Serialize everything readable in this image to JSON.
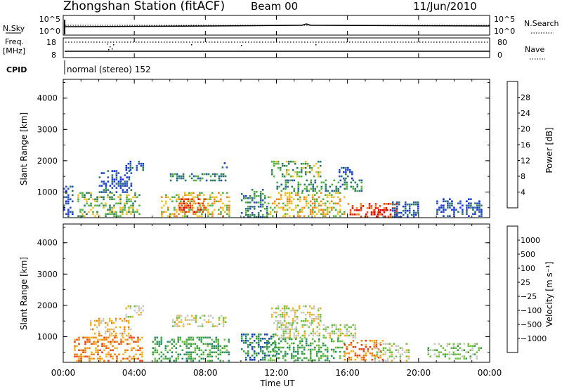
{
  "header": {
    "title": "Zhongshan Station (fitACF)",
    "beam": "Beam 00",
    "date": "11/Jun/2010"
  },
  "status_panels": {
    "nsky_label": "N.Sky",
    "nsky_ticks": [
      "10^5",
      "10^0"
    ],
    "nsearch_label": "N.Search",
    "nsearch_ticks": [
      "10^5",
      "10^0"
    ],
    "freq_label": "Freq.",
    "freq_unit": "[MHz]",
    "freq_ticks": [
      "18",
      "8"
    ],
    "nave_label": "Nave",
    "nave_ticks": [
      "80",
      "0"
    ],
    "cpid_label": "CPID",
    "cpid_text": "normal (stereo) 152"
  },
  "time_axis": {
    "label": "Time UT",
    "ticks": [
      "00:00",
      "04:00",
      "08:00",
      "12:00",
      "16:00",
      "20:00",
      "00:00"
    ]
  },
  "colors": {
    "power_scale": [
      "#1030e8",
      "#2850b8",
      "#2e7a60",
      "#50b040",
      "#f0c020",
      "#f08010",
      "#e84010",
      "#e00000"
    ],
    "velocity_scale": [
      "#1a3fb0",
      "#2a8a70",
      "#3aa040",
      "#70c040",
      "#c8c8c0",
      "#f0b020",
      "#f08000",
      "#e84010",
      "#e00000"
    ]
  },
  "chart_data": [
    {
      "type": "heatmap",
      "title": "",
      "xlabel": "Time UT",
      "ylabel": "Slant Range [km]",
      "xlim": [
        0,
        24
      ],
      "ylim": [
        180,
        4600
      ],
      "yticks": [
        "4000",
        "3000",
        "2000",
        "1000"
      ],
      "colorbar_label": "Power [dB]",
      "colorbar_ticks": [
        "28",
        "24",
        "20",
        "16",
        "12",
        "8",
        "4"
      ],
      "scatter_regions": [
        {
          "t0": 0.0,
          "t1": 0.5,
          "r0": 200,
          "r1": 1200,
          "level": 1
        },
        {
          "t0": 0.8,
          "t1": 4.3,
          "r0": 200,
          "r1": 1000,
          "level": 3
        },
        {
          "t0": 2.0,
          "t1": 3.8,
          "r0": 1000,
          "r1": 1700,
          "level": 1
        },
        {
          "t0": 3.5,
          "t1": 4.5,
          "r0": 1700,
          "r1": 2000,
          "level": 1
        },
        {
          "t0": 5.5,
          "t1": 9.3,
          "r0": 250,
          "r1": 1000,
          "level": 4
        },
        {
          "t0": 6.5,
          "t1": 8.0,
          "r0": 350,
          "r1": 800,
          "level": 6
        },
        {
          "t0": 6.0,
          "t1": 9.2,
          "r0": 1350,
          "r1": 1600,
          "level": 2
        },
        {
          "t0": 8.8,
          "t1": 9.2,
          "r0": 1700,
          "r1": 1950,
          "level": 1
        },
        {
          "t0": 10.0,
          "t1": 11.5,
          "r0": 200,
          "r1": 1100,
          "level": 2
        },
        {
          "t0": 11.7,
          "t1": 14.5,
          "r0": 1500,
          "r1": 2000,
          "level": 3
        },
        {
          "t0": 12.0,
          "t1": 16.8,
          "r0": 1050,
          "r1": 1400,
          "level": 2
        },
        {
          "t0": 11.5,
          "t1": 15.8,
          "r0": 200,
          "r1": 1000,
          "level": 4
        },
        {
          "t0": 15.5,
          "t1": 16.3,
          "r0": 1400,
          "r1": 1800,
          "level": 1
        },
        {
          "t0": 16.0,
          "t1": 18.8,
          "r0": 200,
          "r1": 650,
          "level": 6
        },
        {
          "t0": 17.0,
          "t1": 18.2,
          "r0": 200,
          "r1": 450,
          "level": 7
        },
        {
          "t0": 18.5,
          "t1": 20.0,
          "r0": 200,
          "r1": 700,
          "level": 1
        },
        {
          "t0": 21.0,
          "t1": 23.5,
          "r0": 200,
          "r1": 800,
          "level": 1
        }
      ]
    },
    {
      "type": "heatmap",
      "title": "",
      "xlabel": "Time UT",
      "ylabel": "Slant Range [km]",
      "xlim": [
        0,
        24
      ],
      "ylim": [
        180,
        4600
      ],
      "yticks": [
        "4000",
        "3000",
        "2000",
        "1000"
      ],
      "colorbar_label": "Velocity [m s⁻¹]",
      "colorbar_ticks": [
        "1000",
        "500",
        "100",
        "25",
        "−25",
        "−100",
        "−500",
        "−1000"
      ],
      "scatter_regions": [
        {
          "t0": 0.6,
          "t1": 4.5,
          "r0": 250,
          "r1": 1000,
          "level": 6
        },
        {
          "t0": 1.5,
          "t1": 3.8,
          "r0": 1000,
          "r1": 1600,
          "level": 5
        },
        {
          "t0": 3.5,
          "t1": 4.5,
          "r0": 1600,
          "r1": 2000,
          "level": 4
        },
        {
          "t0": 5.0,
          "t1": 9.3,
          "r0": 250,
          "r1": 1000,
          "level": 2
        },
        {
          "t0": 6.0,
          "t1": 9.2,
          "r0": 1300,
          "r1": 1700,
          "level": 4
        },
        {
          "t0": 10.0,
          "t1": 12.0,
          "r0": 250,
          "r1": 1100,
          "level": 1
        },
        {
          "t0": 11.7,
          "t1": 14.5,
          "r0": 1400,
          "r1": 2000,
          "level": 4
        },
        {
          "t0": 12.0,
          "t1": 16.5,
          "r0": 950,
          "r1": 1400,
          "level": 4
        },
        {
          "t0": 11.5,
          "t1": 15.8,
          "r0": 250,
          "r1": 950,
          "level": 2
        },
        {
          "t0": 15.8,
          "t1": 18.0,
          "r0": 250,
          "r1": 900,
          "level": 6
        },
        {
          "t0": 17.5,
          "t1": 19.5,
          "r0": 250,
          "r1": 800,
          "level": 4
        },
        {
          "t0": 20.5,
          "t1": 23.5,
          "r0": 300,
          "r1": 800,
          "level": 3
        }
      ]
    }
  ]
}
